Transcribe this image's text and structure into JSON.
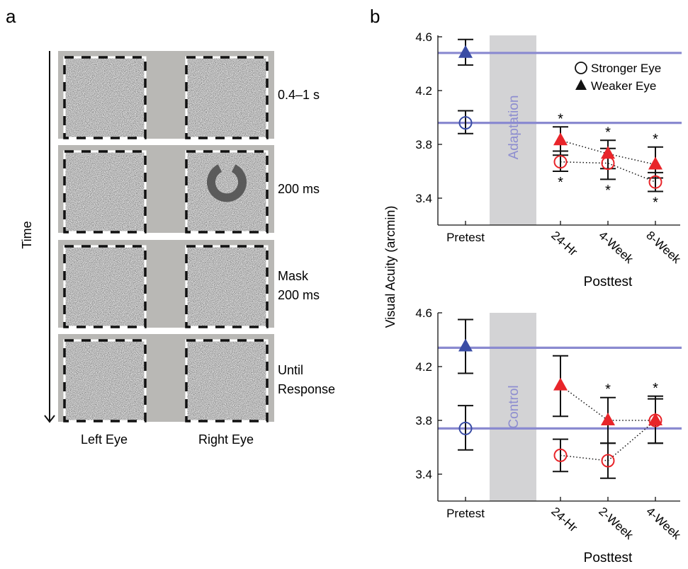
{
  "panel_a": {
    "letter": "a",
    "time_label": "Time",
    "eye_labels": [
      "Left Eye",
      "Right Eye"
    ],
    "frames": [
      {
        "lines": [
          "0.4–1 s"
        ],
        "target": false
      },
      {
        "lines": [
          "200 ms"
        ],
        "target": true
      },
      {
        "lines": [
          "Mask",
          "200 ms"
        ],
        "target": false
      },
      {
        "lines": [
          "Until",
          "Response"
        ],
        "target": false
      }
    ],
    "colors": {
      "frame_gray": "#b9b8b5",
      "noise_mid": "#9b9b9b",
      "target_ring": "#555555"
    }
  },
  "panel_b": {
    "letter": "b",
    "ylabel": "Visual Acuity (arcmin)",
    "legend": {
      "stronger": "Stronger Eye",
      "weaker": "Weaker Eye"
    },
    "colors": {
      "pre": "#3a4da5",
      "post": "#e8252a",
      "baseline": "#8a8ad0",
      "band": "#d3d3d5",
      "band_text": "#8d8dd0"
    }
  },
  "chart_data": [
    {
      "type": "scatter",
      "condition": "Adaptation",
      "categories": [
        "Pretest",
        "24-Hr",
        "4-Week",
        "8-Week"
      ],
      "xlabel": "Posttest",
      "ylabel": "Visual Acuity (arcmin)",
      "ylim": [
        3.2,
        4.62
      ],
      "yticks": [
        3.4,
        3.8,
        4.2,
        4.6
      ],
      "baselines": [
        4.48,
        3.96
      ],
      "series": [
        {
          "name": "Weaker Eye",
          "marker": "triangle",
          "values": [
            4.48,
            3.83,
            3.73,
            3.65
          ],
          "err_low": [
            4.39,
            3.72,
            3.62,
            3.55
          ],
          "err_high": [
            4.58,
            3.93,
            3.83,
            3.78
          ],
          "significant": [
            false,
            true,
            true,
            true
          ]
        },
        {
          "name": "Stronger Eye",
          "marker": "circle",
          "values": [
            3.96,
            3.67,
            3.66,
            3.52
          ],
          "err_low": [
            3.88,
            3.6,
            3.54,
            3.45
          ],
          "err_high": [
            4.05,
            3.75,
            3.77,
            3.59
          ],
          "significant": [
            false,
            true,
            true,
            true
          ]
        }
      ]
    },
    {
      "type": "scatter",
      "condition": "Control",
      "categories": [
        "Pretest",
        "24-Hr",
        "2-Week",
        "4-Week"
      ],
      "xlabel": "Posttest",
      "ylabel": "Visual Acuity (arcmin)",
      "ylim": [
        3.2,
        4.62
      ],
      "yticks": [
        3.4,
        3.8,
        4.2,
        4.6
      ],
      "baselines": [
        4.34,
        3.74
      ],
      "series": [
        {
          "name": "Weaker Eye",
          "marker": "triangle",
          "values": [
            4.35,
            4.06,
            3.8,
            3.8
          ],
          "err_low": [
            4.15,
            3.83,
            3.63,
            3.63
          ],
          "err_high": [
            4.55,
            4.28,
            3.97,
            3.98
          ],
          "significant": [
            false,
            false,
            true,
            true
          ]
        },
        {
          "name": "Stronger Eye",
          "marker": "circle",
          "values": [
            3.74,
            3.54,
            3.5,
            3.8
          ],
          "err_low": [
            3.58,
            3.42,
            3.37,
            3.63
          ],
          "err_high": [
            3.91,
            3.66,
            3.63,
            3.96
          ],
          "significant": [
            false,
            false,
            false,
            false
          ]
        }
      ]
    }
  ]
}
